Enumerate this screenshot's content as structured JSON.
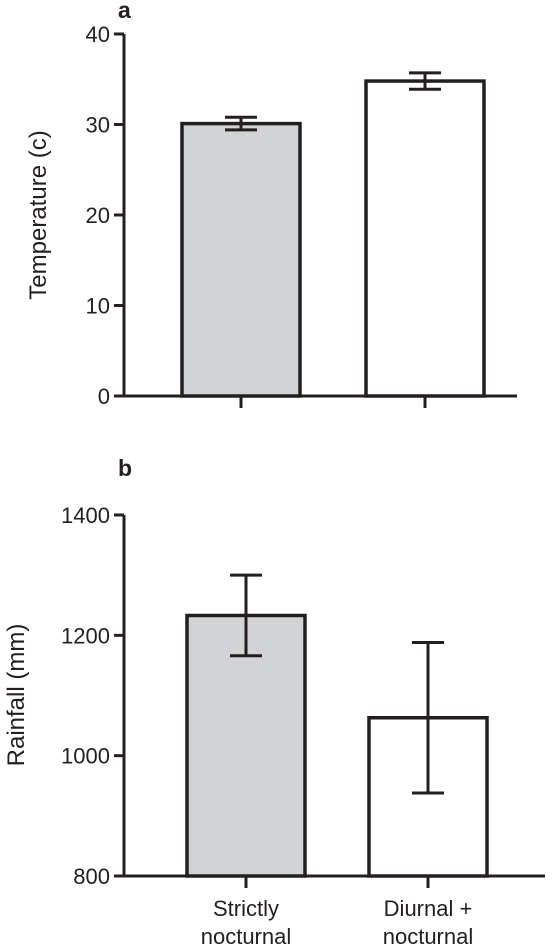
{
  "chart_data": [
    {
      "type": "bar",
      "panel_label": "a",
      "ylabel": "Temperature (c)",
      "ylim": [
        0,
        40
      ],
      "yticks": [
        0,
        10,
        20,
        30,
        40
      ],
      "categories": [
        "Strictly nocturnal",
        "Diurnal + nocturnal"
      ],
      "show_category_labels": false,
      "values": [
        30.1,
        34.8
      ],
      "error": [
        0.7,
        0.9
      ],
      "colors": [
        "#d1d3d4",
        "#ffffff"
      ],
      "grid": false
    },
    {
      "type": "bar",
      "panel_label": "b",
      "ylabel": "Rainfall (mm)",
      "ylim": [
        800,
        1400
      ],
      "yticks": [
        800,
        1000,
        1200,
        1400
      ],
      "categories": [
        "Strictly nocturnal",
        "Diurnal + nocturnal"
      ],
      "category_lines": [
        [
          "Strictly",
          "nocturnal"
        ],
        [
          "Diurnal +",
          "nocturnal"
        ]
      ],
      "show_category_labels": true,
      "values": [
        1233,
        1063
      ],
      "error": [
        67,
        125
      ],
      "colors": [
        "#d1d3d4",
        "#ffffff"
      ],
      "grid": false
    }
  ]
}
